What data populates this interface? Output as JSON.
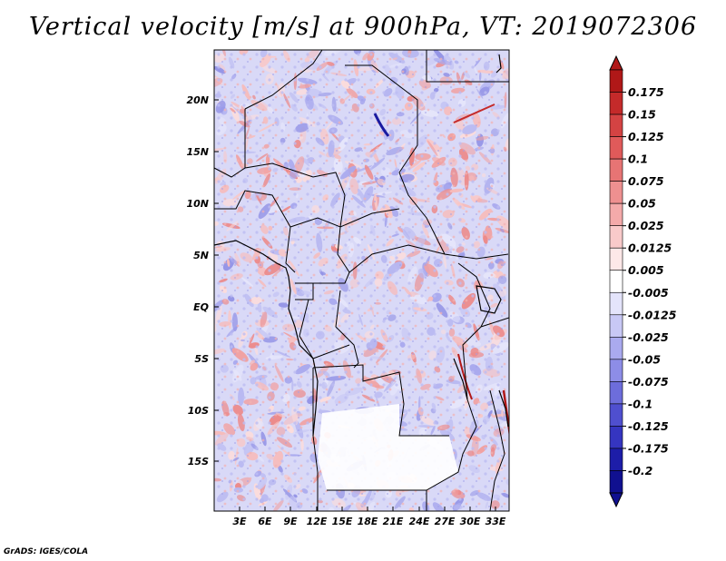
{
  "title": "Vertical velocity [m/s] at 900hPa, VT: 2019072306",
  "credit": "GrADS: IGES/COLA",
  "map": {
    "lat_ticks": [
      "20N",
      "15N",
      "10N",
      "5N",
      "EQ",
      "5S",
      "10S",
      "15S"
    ],
    "lon_ticks": [
      "3E",
      "6E",
      "9E",
      "12E",
      "15E",
      "18E",
      "21E",
      "24E",
      "27E",
      "30E",
      "33E"
    ]
  },
  "colorbar": {
    "labels": [
      "0.175",
      "0.15",
      "0.125",
      "0.1",
      "0.075",
      "0.05",
      "0.025",
      "0.0125",
      "0.005",
      "-0.005",
      "-0.0125",
      "-0.025",
      "-0.05",
      "-0.075",
      "-0.1",
      "-0.125",
      "-0.175",
      "-0.2"
    ],
    "colors": [
      "#b01818",
      "#c42a2a",
      "#d44343",
      "#e05a5a",
      "#e77474",
      "#ee9090",
      "#f4aaaa",
      "#f9caca",
      "#fde8e8",
      "#ffffff",
      "#e4e4fb",
      "#c8c8f5",
      "#aaaaef",
      "#8d8de7",
      "#6d6ddb",
      "#4f4fcf",
      "#3535c0",
      "#1d1da8",
      "#101090"
    ]
  }
}
